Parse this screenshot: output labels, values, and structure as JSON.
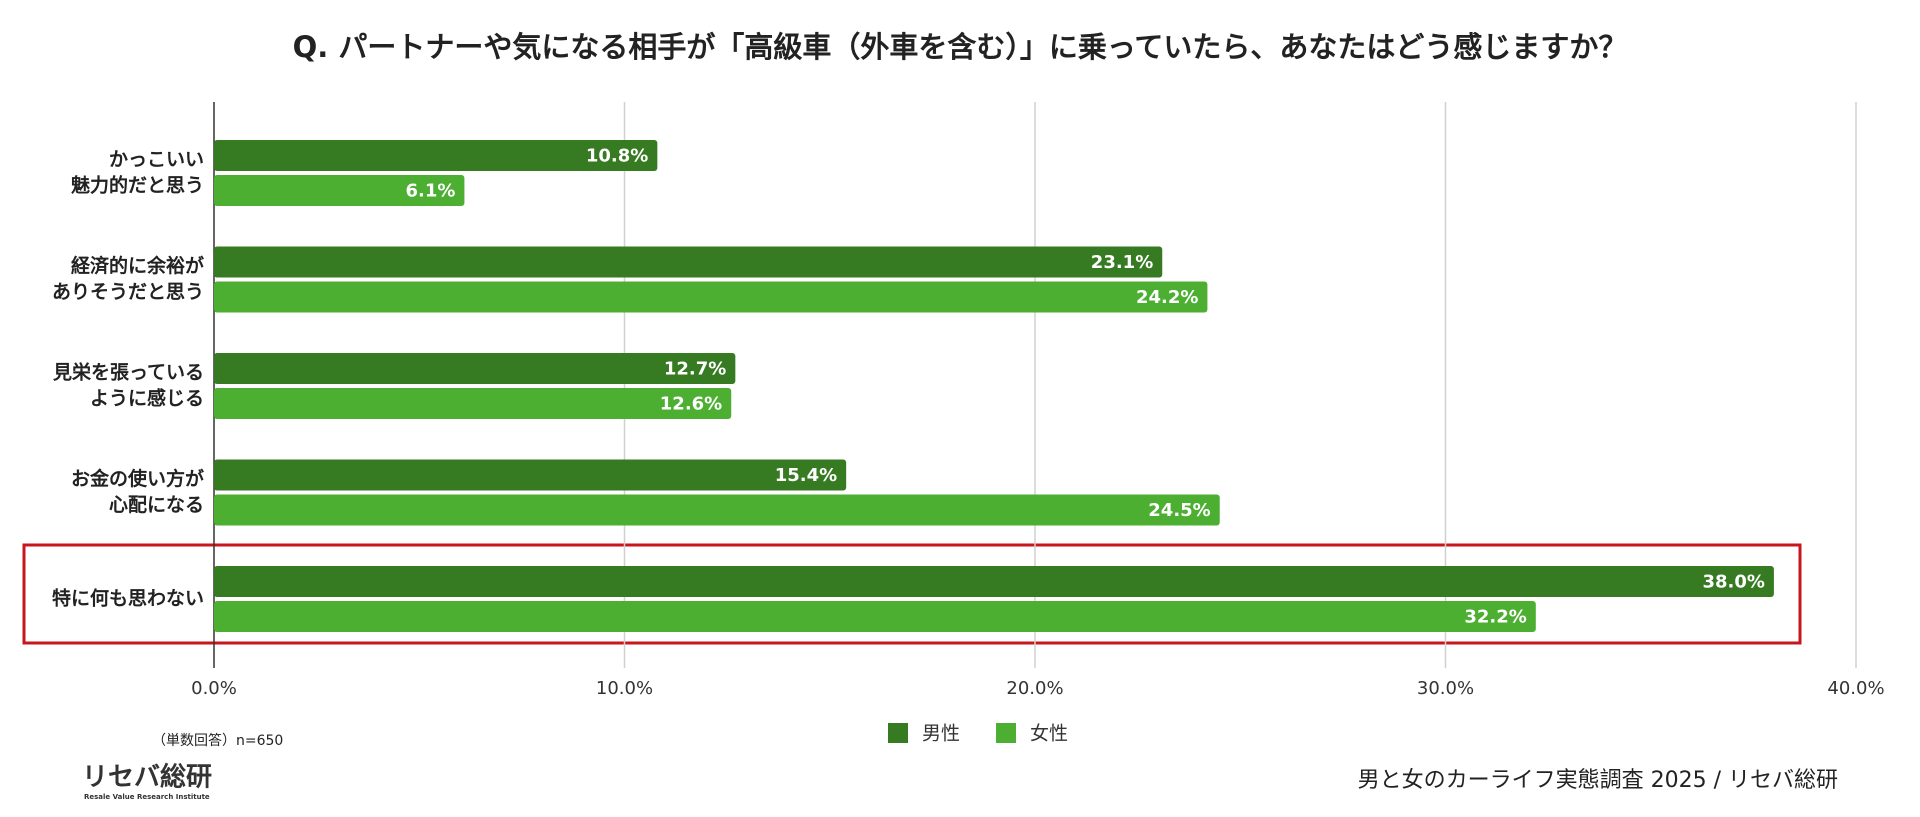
{
  "chart_data": {
    "type": "hbar",
    "title": "Q. パートナーや気になる相手が「高級車（外車を含む）」に乗っていたら、あなたはどう感じますか？",
    "categories": [
      [
        "かっこいい",
        "魅力的だと思う"
      ],
      [
        "経済的に余裕が",
        "ありそうだと思う"
      ],
      [
        "見栄を張っている",
        "ように感じる"
      ],
      [
        "お金の使い方が",
        "心配になる"
      ],
      [
        "特に何も思わない"
      ]
    ],
    "series": [
      {
        "name": "男性",
        "color": "#367a22",
        "values": [
          10.8,
          23.1,
          12.7,
          15.4,
          38.0
        ],
        "value_labels": [
          "10.8%",
          "23.1%",
          "12.7%",
          "15.4%",
          "38.0%"
        ]
      },
      {
        "name": "女性",
        "color": "#4caf32",
        "values": [
          6.1,
          24.2,
          12.6,
          24.5,
          32.2
        ],
        "value_labels": [
          "6.1%",
          "24.2%",
          "12.6%",
          "24.5%",
          "32.2%"
        ]
      }
    ],
    "xlim": [
      0,
      40
    ],
    "xticks": [
      {
        "value": 0,
        "label": "0.0%"
      },
      {
        "value": 10,
        "label": "10.0%"
      },
      {
        "value": 20,
        "label": "20.0%"
      },
      {
        "value": 30,
        "label": "30.0%"
      },
      {
        "value": 40,
        "label": "40.0%"
      }
    ],
    "grid": true,
    "legend": "bottom",
    "note": "（単数回答）n=650",
    "source": "男と女のカーライフ実態調査 2025 / リセバ総研",
    "logo": {
      "name": "リセバ総研",
      "subtitle": "Resale Value Research Institute"
    }
  }
}
